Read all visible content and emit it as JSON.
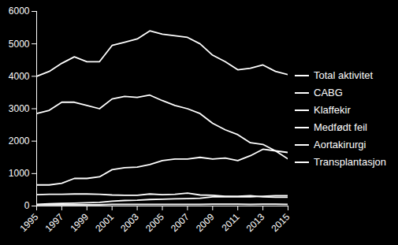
{
  "chart_data": {
    "type": "line",
    "x": [
      1995,
      1996,
      1997,
      1998,
      1999,
      2000,
      2001,
      2002,
      2003,
      2004,
      2005,
      2006,
      2007,
      2008,
      2009,
      2010,
      2011,
      2012,
      2013,
      2014,
      2015
    ],
    "xlim": [
      1995,
      2015
    ],
    "xticks": [
      1995,
      1997,
      1999,
      2001,
      2003,
      2005,
      2007,
      2009,
      2011,
      2013,
      2015
    ],
    "ylim": [
      0,
      6000
    ],
    "yticks": [
      0,
      1000,
      2000,
      3000,
      4000,
      5000,
      6000
    ],
    "grid": false,
    "legend": "right",
    "series": [
      {
        "name": "Total aktivitet",
        "color": "#ffffff",
        "values": [
          4000,
          4150,
          4400,
          4600,
          4450,
          4450,
          4950,
          5050,
          5150,
          5400,
          5300,
          5250,
          5200,
          5000,
          4650,
          4450,
          4200,
          4250,
          4350,
          4150,
          4050
        ]
      },
      {
        "name": "CABG",
        "color": "#ffffff",
        "values": [
          2850,
          2950,
          3200,
          3200,
          3100,
          3000,
          3300,
          3380,
          3350,
          3420,
          3250,
          3100,
          3000,
          2850,
          2550,
          2350,
          2200,
          1950,
          1900,
          1700,
          1450
        ]
      },
      {
        "name": "Klaffekir",
        "color": "#ffffff",
        "values": [
          650,
          650,
          700,
          850,
          850,
          900,
          1120,
          1180,
          1200,
          1280,
          1400,
          1450,
          1450,
          1500,
          1450,
          1480,
          1400,
          1550,
          1750,
          1700,
          1650
        ]
      },
      {
        "name": "Medfødt feil",
        "color": "#ffffff",
        "values": [
          350,
          360,
          360,
          370,
          370,
          360,
          340,
          330,
          330,
          370,
          350,
          360,
          400,
          340,
          330,
          300,
          300,
          320,
          280,
          270,
          270
        ]
      },
      {
        "name": "Aortakirurgi",
        "color": "#ffffff",
        "values": [
          50,
          70,
          80,
          90,
          100,
          110,
          150,
          170,
          180,
          200,
          210,
          220,
          230,
          240,
          280,
          290,
          280,
          280,
          300,
          320,
          320
        ]
      },
      {
        "name": "Transplantasjon",
        "color": "#ffffff",
        "values": [
          40,
          40,
          40,
          40,
          40,
          40,
          50,
          50,
          50,
          50,
          50,
          50,
          50,
          50,
          60,
          60,
          60,
          50,
          60,
          60,
          50
        ]
      }
    ]
  }
}
